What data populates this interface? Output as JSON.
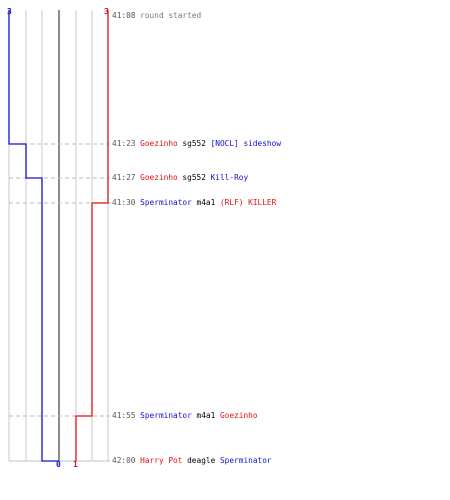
{
  "colors": {
    "team_blue": "#1010cc",
    "team_red": "#dd1111",
    "grid": "#c8c8c8",
    "dash": "#bbbbbb",
    "center": "#666666",
    "time": "#555555",
    "text": "#000000"
  },
  "scores": {
    "blue_start": "3",
    "red_start": "3",
    "blue_end": "0",
    "red_end": "1"
  },
  "events": [
    {
      "time": "41:08",
      "parts": [
        {
          "text": "round started",
          "color": "#777777"
        }
      ]
    },
    {
      "time": "41:23",
      "parts": [
        {
          "text": "Goezinho",
          "color": "#dd1111"
        },
        {
          "text": "sg552",
          "color": "#000000"
        },
        {
          "text": "[NOCL] sideshow",
          "color": "#1010cc"
        }
      ]
    },
    {
      "time": "41:27",
      "parts": [
        {
          "text": "Goezinho",
          "color": "#dd1111"
        },
        {
          "text": "sg552",
          "color": "#000000"
        },
        {
          "text": "Kill-Roy",
          "color": "#1010cc"
        }
      ]
    },
    {
      "time": "41:30",
      "parts": [
        {
          "text": "Sperminator",
          "color": "#1010cc"
        },
        {
          "text": "m4a1",
          "color": "#000000"
        },
        {
          "text": "(RLF) KILLER",
          "color": "#dd1111"
        }
      ]
    },
    {
      "time": "41:55",
      "parts": [
        {
          "text": "Sperminator",
          "color": "#1010cc"
        },
        {
          "text": "m4a1",
          "color": "#000000"
        },
        {
          "text": "Goezinho",
          "color": "#dd1111"
        }
      ]
    },
    {
      "time": "42:00",
      "parts": [
        {
          "text": "Harry Pot",
          "color": "#dd1111"
        },
        {
          "text": "deagle",
          "color": "#000000"
        },
        {
          "text": "Sperminator",
          "color": "#1010cc"
        }
      ]
    }
  ]
}
